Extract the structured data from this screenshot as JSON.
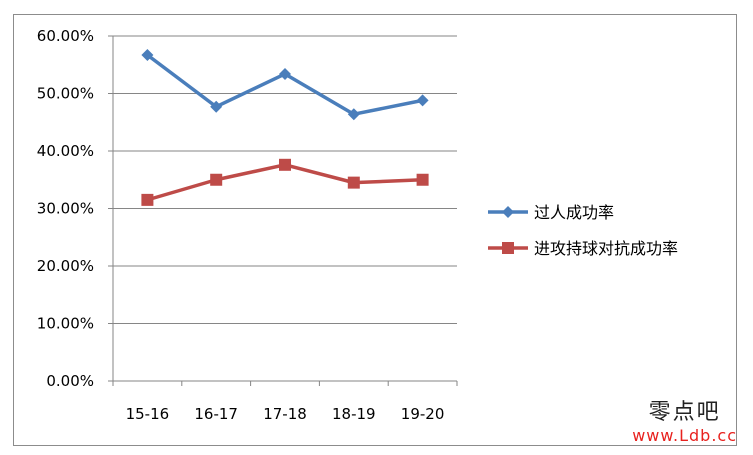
{
  "chart_data": {
    "type": "line",
    "categories": [
      "15-16",
      "16-17",
      "17-18",
      "18-19",
      "19-20"
    ],
    "series": [
      {
        "name": "过人成功率",
        "values": [
          56.7,
          47.7,
          53.4,
          46.4,
          48.8
        ],
        "color": "#4a7ebb",
        "marker": "diamond"
      },
      {
        "name": "进攻持球对抗成功率",
        "values": [
          31.5,
          35.0,
          37.6,
          34.5,
          35.0
        ],
        "color": "#be4b48",
        "marker": "square"
      }
    ],
    "ylim": [
      0,
      60
    ],
    "yticks": [
      "0.00%",
      "10.00%",
      "20.00%",
      "30.00%",
      "40.00%",
      "50.00%",
      "60.00%"
    ],
    "grid": true,
    "legend": "right"
  },
  "watermark": {
    "text": "零点吧",
    "url": "www.Ldb.cc"
  }
}
